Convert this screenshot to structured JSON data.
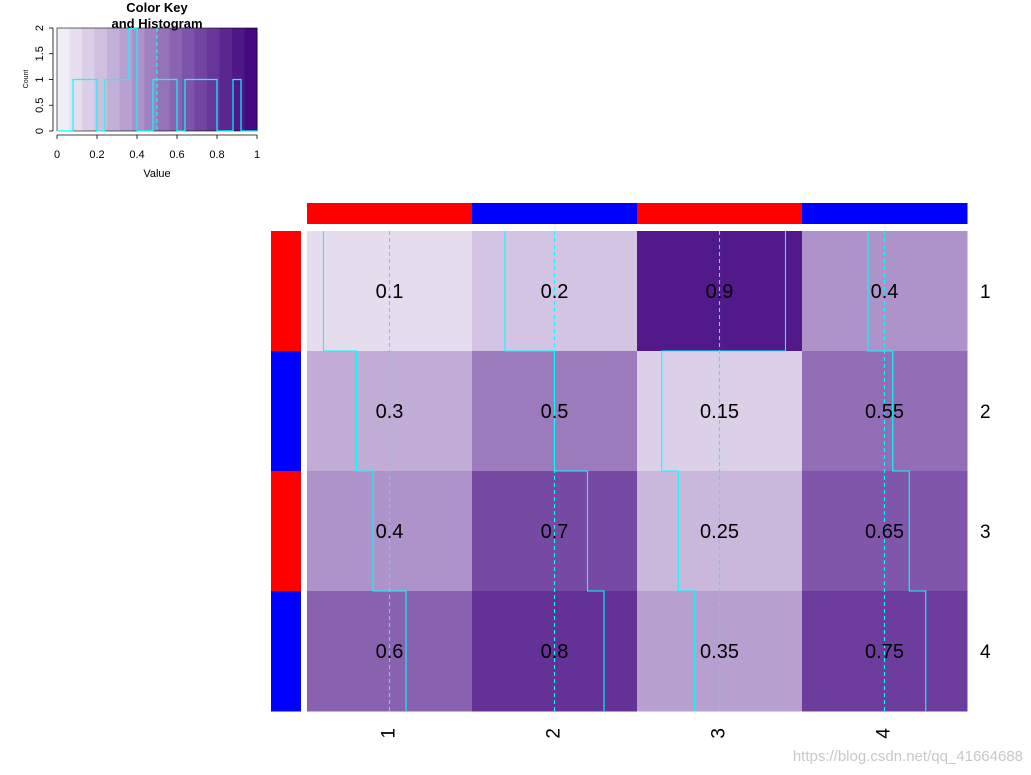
{
  "chart_data": [
    {
      "type": "histogram",
      "title": "Color Key\nand Histogram",
      "xlabel": "Value",
      "ylabel": "Count",
      "xlim": [
        0,
        1
      ],
      "ylim": [
        0,
        2
      ],
      "x_ticks": [
        "0",
        "0.2",
        "0.4",
        "0.6",
        "0.8",
        "1"
      ],
      "y_ticks": [
        "0",
        "0.5",
        "1",
        "1.5",
        "2"
      ],
      "bins": [
        {
          "from": 0.0,
          "to": 0.08,
          "count": 0
        },
        {
          "from": 0.08,
          "to": 0.2,
          "count": 1
        },
        {
          "from": 0.2,
          "to": 0.24,
          "count": 0
        },
        {
          "from": 0.24,
          "to": 0.36,
          "count": 1
        },
        {
          "from": 0.36,
          "to": 0.4,
          "count": 2
        },
        {
          "from": 0.4,
          "to": 0.48,
          "count": 0
        },
        {
          "from": 0.48,
          "to": 0.6,
          "count": 1
        },
        {
          "from": 0.6,
          "to": 0.64,
          "count": 0
        },
        {
          "from": 0.64,
          "to": 0.8,
          "count": 1
        },
        {
          "from": 0.8,
          "to": 0.88,
          "count": 0
        },
        {
          "from": 0.88,
          "to": 0.92,
          "count": 1
        },
        {
          "from": 0.92,
          "to": 1.0,
          "count": 0
        }
      ],
      "mean_line": 0.5,
      "color_low": "#f7f5fb",
      "color_high": "#3f007d",
      "trace_color": "#00ffff"
    },
    {
      "type": "heatmap",
      "rows": [
        "1",
        "2",
        "3",
        "4"
      ],
      "cols": [
        "1",
        "2",
        "3",
        "4"
      ],
      "values": [
        [
          0.1,
          0.2,
          0.9,
          0.4
        ],
        [
          0.3,
          0.5,
          0.15,
          0.55
        ],
        [
          0.4,
          0.7,
          0.25,
          0.65
        ],
        [
          0.6,
          0.8,
          0.35,
          0.75
        ]
      ],
      "cell_labels": [
        [
          "0.1",
          "0.2",
          "0.9",
          "0.4"
        ],
        [
          "0.3",
          "0.5",
          "0.15",
          "0.55"
        ],
        [
          "0.4",
          "0.7",
          "0.25",
          "0.65"
        ],
        [
          "0.6",
          "0.8",
          "0.35",
          "0.75"
        ]
      ],
      "col_side_colors": [
        "#ff0000",
        "#0000ff",
        "#ff0000",
        "#0000ff"
      ],
      "row_side_colors": [
        "#ff0000",
        "#0000ff",
        "#ff0000",
        "#0000ff"
      ],
      "trace": "column",
      "trace_color": "#00ffff",
      "color_low": "#f7f5fb",
      "color_high": "#3f007d"
    }
  ],
  "watermark": "https://blog.csdn.net/qq_41664688"
}
